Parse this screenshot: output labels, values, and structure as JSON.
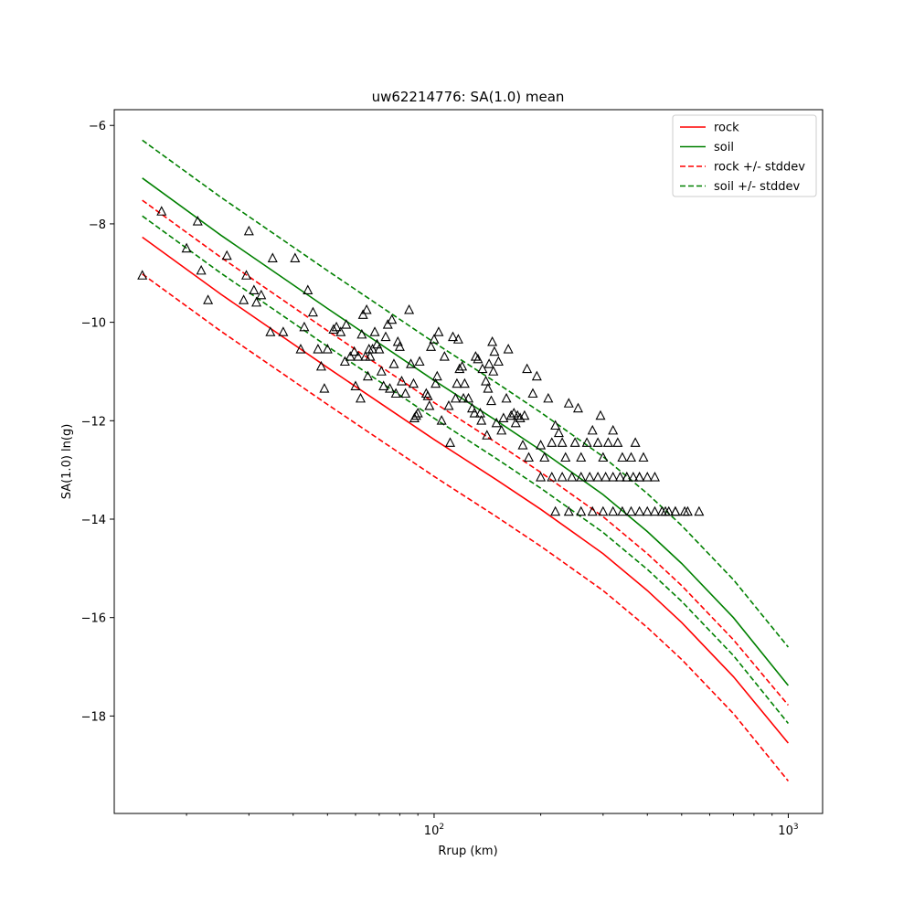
{
  "chart_data": {
    "type": "scatter",
    "title": "uw62214776: SA(1.0) mean",
    "xlabel": "Rrup (km)",
    "ylabel": "SA(1.0) ln(g)",
    "xscale": "log",
    "xlim": [
      12.5,
      1250
    ],
    "ylim": [
      -19.98,
      -5.68
    ],
    "x_tick_labels": [
      {
        "value": 100,
        "base": "10",
        "exp": "2"
      },
      {
        "value": 1000,
        "base": "10",
        "exp": "3"
      }
    ],
    "y_ticks": [
      -6,
      -8,
      -10,
      -12,
      -14,
      -16,
      -18
    ],
    "y_tick_labels": [
      "−6",
      "−8",
      "−10",
      "−12",
      "−14",
      "−16",
      "−18"
    ],
    "grid": false,
    "legend": {
      "placement": "top-right",
      "entries": [
        {
          "label": "rock",
          "color": "#ff0000",
          "style": "solid"
        },
        {
          "label": "soil",
          "color": "#008000",
          "style": "solid"
        },
        {
          "label": "rock +/- stddev",
          "color": "#ff0000",
          "style": "dashed"
        },
        {
          "label": "soil +/- stddev",
          "color": "#008000",
          "style": "dashed"
        }
      ]
    },
    "series": [
      {
        "name": "rock",
        "color": "#ff0000",
        "style": "solid",
        "x": [
          15,
          25,
          50,
          100,
          150,
          200,
          300,
          400,
          500,
          700,
          1000
        ],
        "y": [
          -8.27,
          -9.43,
          -10.92,
          -12.38,
          -13.2,
          -13.8,
          -14.7,
          -15.45,
          -16.1,
          -17.2,
          -18.55
        ]
      },
      {
        "name": "soil",
        "color": "#008000",
        "style": "solid",
        "x": [
          15,
          25,
          50,
          100,
          150,
          200,
          300,
          400,
          500,
          700,
          1000
        ],
        "y": [
          -7.07,
          -8.23,
          -9.72,
          -11.18,
          -12.0,
          -12.6,
          -13.5,
          -14.25,
          -14.9,
          -16.0,
          -17.38
        ]
      },
      {
        "name": "rock +/- stddev",
        "color": "#ff0000",
        "style": "dashed",
        "x": [
          15,
          25,
          50,
          100,
          150,
          200,
          300,
          400,
          500,
          700,
          1000
        ],
        "y": [
          -7.52,
          -8.68,
          -10.17,
          -11.63,
          -12.45,
          -13.05,
          -13.95,
          -14.7,
          -15.35,
          -16.45,
          -17.78
        ]
      },
      {
        "name": "rock +/- stddev",
        "color": "#ff0000",
        "style": "dashed",
        "x": [
          15,
          25,
          50,
          100,
          150,
          200,
          300,
          400,
          500,
          700,
          1000
        ],
        "y": [
          -9.02,
          -10.18,
          -11.67,
          -13.13,
          -13.95,
          -14.55,
          -15.45,
          -16.2,
          -16.85,
          -17.95,
          -19.32
        ]
      },
      {
        "name": "soil +/- stddev",
        "color": "#008000",
        "style": "dashed",
        "x": [
          15,
          25,
          50,
          100,
          150,
          200,
          300,
          400,
          500,
          700,
          1000
        ],
        "y": [
          -6.3,
          -7.46,
          -8.95,
          -10.41,
          -11.23,
          -11.83,
          -12.73,
          -13.48,
          -14.13,
          -15.23,
          -16.6
        ]
      },
      {
        "name": "soil +/- stddev",
        "color": "#008000",
        "style": "dashed",
        "x": [
          15,
          25,
          50,
          100,
          150,
          200,
          300,
          400,
          500,
          700,
          1000
        ],
        "y": [
          -7.84,
          -9.0,
          -10.49,
          -11.95,
          -12.77,
          -13.37,
          -14.27,
          -15.02,
          -15.67,
          -16.77,
          -18.15
        ]
      }
    ],
    "scatter": {
      "marker": "triangle",
      "x": [
        15,
        17,
        20,
        21.5,
        22,
        23,
        26,
        29,
        29.5,
        30,
        31,
        31.5,
        32.5,
        34.5,
        35,
        37.5,
        40.5,
        42,
        43,
        44,
        45.5,
        47,
        48,
        49,
        50,
        52,
        53,
        54.5,
        56,
        56.5,
        58,
        59.5,
        60,
        61,
        62,
        62.5,
        63,
        64,
        64.5,
        65,
        65.5,
        66,
        67,
        68,
        69,
        70,
        71,
        72,
        73,
        74,
        75,
        76,
        77,
        78,
        79,
        80,
        81,
        83,
        85,
        86,
        87.5,
        88,
        89,
        90,
        91,
        95,
        96,
        97,
        98,
        100,
        101,
        102,
        103,
        105,
        107,
        110,
        111,
        113,
        115,
        116,
        117,
        118,
        120,
        121,
        122,
        125,
        128,
        130,
        131,
        133,
        135,
        136,
        137,
        140,
        141,
        142,
        143,
        145,
        146,
        147,
        148,
        150,
        152,
        155,
        157,
        160,
        162,
        165,
        168,
        170,
        172,
        175,
        178,
        180,
        183,
        185,
        190,
        195,
        200,
        205,
        210,
        215,
        220,
        225,
        230,
        235,
        240,
        250,
        255,
        260,
        270,
        280,
        290,
        295,
        300,
        310,
        320,
        330,
        340,
        350,
        360,
        370,
        380,
        390,
        400,
        420,
        440,
        460,
        480,
        520,
        560,
        200,
        215,
        230,
        245,
        260,
        275,
        290,
        305,
        320,
        335,
        350,
        365,
        380,
        220,
        240,
        260,
        280,
        300,
        320,
        340,
        360,
        380,
        400,
        420,
        450,
        480,
        510
      ],
      "y": [
        -9.05,
        -7.75,
        -8.5,
        -7.95,
        -8.95,
        -9.55,
        -8.65,
        -9.55,
        -9.05,
        -8.15,
        -9.35,
        -9.6,
        -9.45,
        -10.2,
        -8.7,
        -10.2,
        -8.7,
        -10.55,
        -10.1,
        -9.35,
        -9.8,
        -10.55,
        -10.9,
        -11.35,
        -10.55,
        -10.15,
        -10.1,
        -10.2,
        -10.8,
        -10.05,
        -10.7,
        -10.6,
        -11.3,
        -10.7,
        -11.55,
        -10.25,
        -9.85,
        -10.7,
        -9.75,
        -11.1,
        -10.55,
        -10.7,
        -10.55,
        -10.2,
        -10.45,
        -10.55,
        -11.0,
        -11.3,
        -10.3,
        -10.05,
        -11.35,
        -9.95,
        -10.85,
        -11.45,
        -10.4,
        -10.5,
        -11.2,
        -11.45,
        -9.75,
        -10.85,
        -11.25,
        -11.95,
        -11.9,
        -11.85,
        -10.8,
        -11.45,
        -11.5,
        -11.7,
        -10.5,
        -10.35,
        -11.25,
        -11.1,
        -10.2,
        -12.0,
        -10.7,
        -11.7,
        -12.45,
        -10.3,
        -11.55,
        -11.25,
        -10.35,
        -10.95,
        -10.9,
        -11.55,
        -11.25,
        -11.55,
        -11.75,
        -11.85,
        -10.7,
        -10.75,
        -11.85,
        -12.0,
        -10.95,
        -11.2,
        -12.3,
        -11.35,
        -10.85,
        -11.6,
        -10.4,
        -11.0,
        -10.6,
        -12.05,
        -10.8,
        -12.2,
        -11.95,
        -11.55,
        -10.55,
        -11.9,
        -11.85,
        -12.05,
        -11.9,
        -11.95,
        -12.5,
        -11.9,
        -10.95,
        -12.75,
        -11.45,
        -11.1,
        -12.5,
        -12.75,
        -11.55,
        -12.45,
        -12.1,
        -12.25,
        -12.45,
        -12.75,
        -11.65,
        -12.45,
        -11.75,
        -12.75,
        -12.45,
        -12.2,
        -12.45,
        -11.9,
        -12.75,
        -12.45,
        -12.2,
        -12.45,
        -12.75,
        -13.15,
        -12.75,
        -12.45,
        -13.15,
        -12.75,
        -13.15,
        -13.15,
        -13.85,
        -13.85,
        -13.85,
        -13.85,
        -13.85,
        -13.15,
        -13.15,
        -13.15,
        -13.15,
        -13.15,
        -13.15,
        -13.15,
        -13.15,
        -13.15,
        -13.15,
        -13.15,
        -13.15,
        -13.15,
        -13.85,
        -13.85,
        -13.85,
        -13.85,
        -13.85,
        -13.85,
        -13.85,
        -13.85,
        -13.85,
        -13.85,
        -13.85,
        -13.85,
        -13.85,
        -13.85
      ]
    }
  }
}
